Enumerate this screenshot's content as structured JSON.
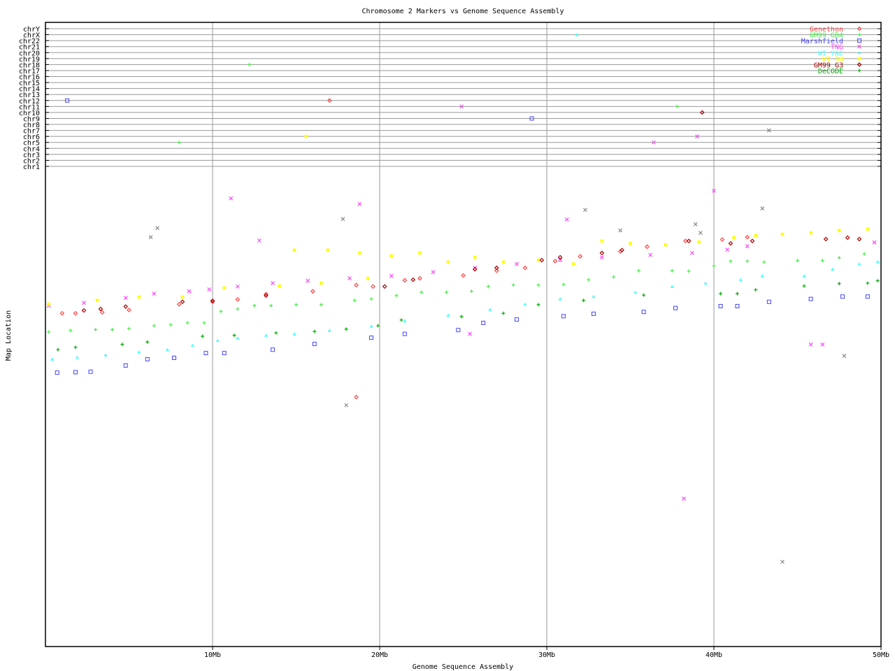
{
  "chart_data": {
    "type": "scatter",
    "title": "Chromosome 2 Markers vs Genome Sequence Assembly",
    "xlabel": "Genome Sequence Assembly",
    "ylabel": "Map Location",
    "xlim": [
      0,
      50
    ],
    "x_ticks": [
      {
        "v": 10,
        "label": "10Mb"
      },
      {
        "v": 20,
        "label": "20Mb"
      },
      {
        "v": 30,
        "label": "30Mb"
      },
      {
        "v": 40,
        "label": "40Mb"
      },
      {
        "v": 50,
        "label": "50Mb"
      }
    ],
    "ylim": [
      0,
      100
    ],
    "other_chromosomes": [
      "chrY",
      "chrX",
      "chr22",
      "chr21",
      "chr20",
      "chr19",
      "chr18",
      "chr17",
      "chr16",
      "chr15",
      "chr14",
      "chr13",
      "chr12",
      "chr11",
      "chr10",
      "chr9",
      "chr8",
      "chr7",
      "chr6",
      "chr5",
      "chr4",
      "chr3",
      "chr2",
      "chr1"
    ],
    "grid": true,
    "legend_position": "top-right",
    "series": [
      {
        "name": "Genethon",
        "color": "#ff4444",
        "marker": "diamond",
        "points": [
          [
            1,
            69.6
          ],
          [
            1.8,
            69.6
          ],
          [
            3.4,
            69.8
          ],
          [
            5,
            70.3
          ],
          [
            8,
            71.5
          ],
          [
            10,
            72
          ],
          [
            11.5,
            72.5
          ],
          [
            13.2,
            73.6
          ],
          [
            16,
            74.2
          ],
          [
            18.6,
            75.5
          ],
          [
            19.6,
            75.2
          ],
          [
            21.5,
            76.5
          ],
          [
            22.4,
            76.9
          ],
          [
            25,
            77.5
          ],
          [
            27,
            78.5
          ],
          [
            28.7,
            79.1
          ],
          [
            30.5,
            80.5
          ],
          [
            32,
            81.5
          ],
          [
            34.4,
            82.5
          ],
          [
            36,
            83.5
          ],
          [
            38.3,
            84.7
          ],
          [
            40.5,
            85
          ],
          [
            42,
            85.5
          ],
          [
            18.6,
            52.1
          ]
        ],
        "off_chr": [
          {
            "x": 17.0,
            "chr": "chr12"
          }
        ]
      },
      {
        "name": "GM99 GB4",
        "color": "#44ee44",
        "marker": "plus",
        "points": [
          [
            0.2,
            65.7
          ],
          [
            1.5,
            66
          ],
          [
            3,
            66.2
          ],
          [
            4,
            66.2
          ],
          [
            5,
            66.4
          ],
          [
            6.5,
            67
          ],
          [
            7.5,
            67.2
          ],
          [
            8.5,
            67.6
          ],
          [
            9.5,
            67.6
          ],
          [
            10.5,
            70
          ],
          [
            11.5,
            70.5
          ],
          [
            12.5,
            71.2
          ],
          [
            13.5,
            71.2
          ],
          [
            15,
            71.4
          ],
          [
            16.5,
            71.4
          ],
          [
            18.5,
            72.3
          ],
          [
            19.5,
            72.6
          ],
          [
            21,
            73.3
          ],
          [
            22.5,
            74
          ],
          [
            24,
            74
          ],
          [
            25.5,
            74.2
          ],
          [
            26.5,
            75.2
          ],
          [
            28,
            75.5
          ],
          [
            29.5,
            75.5
          ],
          [
            31,
            75.6
          ],
          [
            32.5,
            76.6
          ],
          [
            34,
            77.2
          ],
          [
            35.5,
            78.5
          ],
          [
            37.5,
            78.5
          ],
          [
            38.5,
            78.4
          ],
          [
            40,
            79.5
          ],
          [
            41,
            80.5
          ],
          [
            42,
            80.5
          ],
          [
            43,
            80.3
          ],
          [
            45,
            80.6
          ],
          [
            46.5,
            80.6
          ],
          [
            47.5,
            81.2
          ],
          [
            49,
            82
          ]
        ],
        "off_chr": [
          {
            "x": 12.2,
            "chr": "chr18"
          },
          {
            "x": 8.0,
            "chr": "chr5"
          },
          {
            "x": 37.8,
            "chr": "chr11"
          }
        ]
      },
      {
        "name": "Marshfield",
        "color": "#4444ff",
        "marker": "square",
        "points": [
          [
            0.7,
            57.2
          ],
          [
            1.8,
            57.3
          ],
          [
            2.7,
            57.4
          ],
          [
            4.8,
            58.7
          ],
          [
            6.1,
            60
          ],
          [
            7.7,
            60.3
          ],
          [
            9.6,
            61.3
          ],
          [
            10.7,
            61.3
          ],
          [
            13.6,
            62
          ],
          [
            16.1,
            63.2
          ],
          [
            19.5,
            64.5
          ],
          [
            21.5,
            65.3
          ],
          [
            24.7,
            66.1
          ],
          [
            26.2,
            67.6
          ],
          [
            28.2,
            68.3
          ],
          [
            31,
            69
          ],
          [
            32.8,
            69.5
          ],
          [
            35.8,
            69.9
          ],
          [
            37.7,
            70.7
          ],
          [
            40.4,
            71.1
          ],
          [
            41.4,
            71.1
          ],
          [
            43.3,
            72
          ],
          [
            45.8,
            72.6
          ],
          [
            47.7,
            73.1
          ],
          [
            49.2,
            73.1
          ]
        ],
        "off_chr": [
          {
            "x": 1.3,
            "chr": "chr12"
          },
          {
            "x": 29.1,
            "chr": "chr9"
          }
        ]
      },
      {
        "name": "TNG",
        "color": "#ff44ff",
        "marker": "x",
        "points": [
          [
            0.2,
            71.2
          ],
          [
            2.3,
            71.8
          ],
          [
            4.8,
            72.8
          ],
          [
            6.5,
            73.7
          ],
          [
            8.6,
            74.2
          ],
          [
            9.8,
            74.6
          ],
          [
            11.5,
            75.2
          ],
          [
            13.6,
            75.9
          ],
          [
            15.7,
            76.4
          ],
          [
            18.2,
            76.9
          ],
          [
            20.7,
            77.4
          ],
          [
            23.2,
            78.2
          ],
          [
            25.7,
            79.1
          ],
          [
            28.2,
            79.9
          ],
          [
            30.8,
            80.7
          ],
          [
            33.3,
            81.3
          ],
          [
            36.2,
            81.8
          ],
          [
            38.7,
            82.2
          ],
          [
            40.8,
            82.9
          ],
          [
            42,
            83.6
          ],
          [
            45.8,
            63.1
          ],
          [
            46.5,
            63.1
          ],
          [
            11.1,
            93.6
          ],
          [
            18.8,
            92.4
          ],
          [
            12.8,
            84.8
          ],
          [
            31.2,
            89.2
          ],
          [
            40,
            95.2
          ],
          [
            38.2,
            30.9
          ],
          [
            25.4,
            65.3
          ],
          [
            49.6,
            84.4
          ]
        ],
        "off_chr": [
          {
            "x": 24.9,
            "chr": "chr11"
          },
          {
            "x": 36.4,
            "chr": "chr5"
          },
          {
            "x": 39.0,
            "chr": "chr6"
          }
        ]
      },
      {
        "name": "WI YAC",
        "color": "#44ffff",
        "marker": "triangle",
        "points": [
          [
            0.4,
            60
          ],
          [
            1.9,
            60.4
          ],
          [
            3.6,
            60.9
          ],
          [
            5.6,
            61.5
          ],
          [
            7.3,
            62
          ],
          [
            8.8,
            62.9
          ],
          [
            10.3,
            63.9
          ],
          [
            11.5,
            64.4
          ],
          [
            13.2,
            65
          ],
          [
            14.9,
            65.3
          ],
          [
            17,
            66
          ],
          [
            19.5,
            66.9
          ],
          [
            21.5,
            68
          ],
          [
            24.1,
            69.2
          ],
          [
            26.6,
            70.4
          ],
          [
            28.7,
            71.5
          ],
          [
            30.8,
            72.6
          ],
          [
            32.8,
            73.1
          ],
          [
            35.3,
            74
          ],
          [
            37.5,
            75.2
          ],
          [
            39.5,
            75.9
          ],
          [
            41.6,
            76.6
          ],
          [
            42.9,
            77.4
          ],
          [
            45.4,
            77.4
          ],
          [
            47.1,
            78.8
          ],
          [
            48.7,
            79.9
          ],
          [
            49.8,
            80.4
          ]
        ],
        "off_chr": [
          {
            "x": 31.8,
            "chr": "chrX"
          }
        ]
      },
      {
        "name": "WI RH",
        "color": "#ffff00",
        "marker": "star",
        "points": [
          [
            0.2,
            71.5
          ],
          [
            3.1,
            72.3
          ],
          [
            5.6,
            73
          ],
          [
            8.2,
            73
          ],
          [
            10.7,
            74.9
          ],
          [
            14,
            75.3
          ],
          [
            16.5,
            75.9
          ],
          [
            16.9,
            82.8
          ],
          [
            18.8,
            82.2
          ],
          [
            20.7,
            81.6
          ],
          [
            22.4,
            82.2
          ],
          [
            24.1,
            80.3
          ],
          [
            25.7,
            81.3
          ],
          [
            27.4,
            80.3
          ],
          [
            29.5,
            80.7
          ],
          [
            31.6,
            79.9
          ],
          [
            33.3,
            84.7
          ],
          [
            35,
            84.2
          ],
          [
            37.1,
            83.9
          ],
          [
            39.1,
            84.5
          ],
          [
            41.2,
            85.4
          ],
          [
            42.5,
            85.8
          ],
          [
            44.1,
            86.1
          ],
          [
            45.8,
            86.4
          ],
          [
            47.5,
            86.9
          ],
          [
            49.2,
            87.2
          ],
          [
            14.9,
            82.8
          ],
          [
            19.3,
            76.9
          ]
        ],
        "off_chr": [
          {
            "x": 15.6,
            "chr": "chr6"
          }
        ]
      },
      {
        "name": "GM99 G3",
        "color": "#aa0000",
        "marker": "diamond",
        "points": [
          [
            2.3,
            70.2
          ],
          [
            3.3,
            70.5
          ],
          [
            4.8,
            71
          ],
          [
            8.2,
            72
          ],
          [
            10,
            72.2
          ],
          [
            13.2,
            73.3
          ],
          [
            20.3,
            75.2
          ],
          [
            22,
            76.6
          ],
          [
            25.7,
            78.8
          ],
          [
            27,
            79.1
          ],
          [
            29.7,
            80.7
          ],
          [
            30.8,
            81.3
          ],
          [
            33.3,
            82.2
          ],
          [
            34.5,
            82.8
          ],
          [
            38.5,
            84.7
          ],
          [
            41,
            84.2
          ],
          [
            42.3,
            84.7
          ],
          [
            46.7,
            85.1
          ],
          [
            48,
            85.4
          ],
          [
            48.7,
            85.1
          ]
        ],
        "off_chr": [
          {
            "x": 39.3,
            "chr": "chr10"
          }
        ]
      },
      {
        "name": "DeCODE",
        "color": "#00aa00",
        "marker": "plus",
        "points": [
          [
            0.75,
            62
          ],
          [
            1.8,
            62.5
          ],
          [
            4.6,
            63.1
          ],
          [
            6.1,
            63.6
          ],
          [
            9.4,
            64.8
          ],
          [
            11.3,
            65
          ],
          [
            13.8,
            65.5
          ],
          [
            16.1,
            65.8
          ],
          [
            18,
            66.3
          ],
          [
            19.9,
            67
          ],
          [
            21.3,
            68.2
          ],
          [
            24.9,
            68.9
          ],
          [
            27.4,
            69.6
          ],
          [
            29.5,
            71.4
          ],
          [
            32.2,
            72.3
          ],
          [
            35.8,
            73.4
          ],
          [
            40.4,
            73.7
          ],
          [
            41.4,
            73.7
          ],
          [
            42.5,
            74.5
          ],
          [
            45.4,
            75.3
          ],
          [
            47.5,
            75.8
          ],
          [
            49.2,
            75.9
          ],
          [
            49.8,
            76.4
          ]
        ],
        "off_chr": []
      },
      {
        "color": "#888888",
        "marker": "x",
        "points": [
          [
            6.7,
            87.4
          ],
          [
            6.3,
            85.5
          ],
          [
            17.8,
            89.3
          ],
          [
            32.3,
            91.2
          ],
          [
            34.4,
            86.9
          ],
          [
            38.9,
            88.2
          ],
          [
            42.9,
            91.5
          ],
          [
            18,
            50.4
          ],
          [
            44.1,
            17.7
          ],
          [
            47.8,
            60.7
          ],
          [
            39.2,
            86.4
          ]
        ],
        "off_chr": [
          {
            "x": 43.3,
            "chr": "chr7"
          }
        ]
      }
    ]
  }
}
